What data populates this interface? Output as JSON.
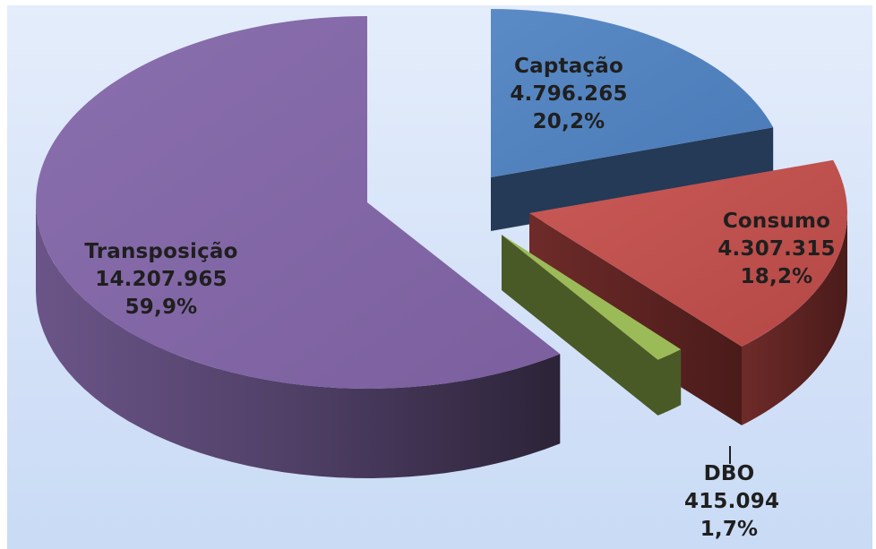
{
  "chart_data": {
    "type": "pie",
    "style": "3d-exploded",
    "slices": [
      {
        "key": "transposicao",
        "label": "Transposição",
        "value": 14207965,
        "value_text": "14.207.965",
        "percent": 59.9,
        "percent_text": "59,9%",
        "color": "#8064a2",
        "label_color": "#1f1f1f"
      },
      {
        "key": "captacao",
        "label": "Captação",
        "value": 4796265,
        "value_text": "4.796.265",
        "percent": 20.2,
        "percent_text": "20,2%",
        "color": "#4f81bd",
        "label_color": "#1f1f1f"
      },
      {
        "key": "consumo",
        "label": "Consumo",
        "value": 4307315,
        "value_text": "4.307.315",
        "percent": 18.2,
        "percent_text": "18,2%",
        "color": "#c0504d",
        "label_color": "#1f1f1f"
      },
      {
        "key": "dbo",
        "label": "DBO",
        "value": 415094,
        "value_text": "415.094",
        "percent": 1.7,
        "percent_text": "1,7%",
        "color": "#9bbb59",
        "label_color": "#1f1f1f"
      }
    ],
    "background_color": "#d9e5f8"
  }
}
